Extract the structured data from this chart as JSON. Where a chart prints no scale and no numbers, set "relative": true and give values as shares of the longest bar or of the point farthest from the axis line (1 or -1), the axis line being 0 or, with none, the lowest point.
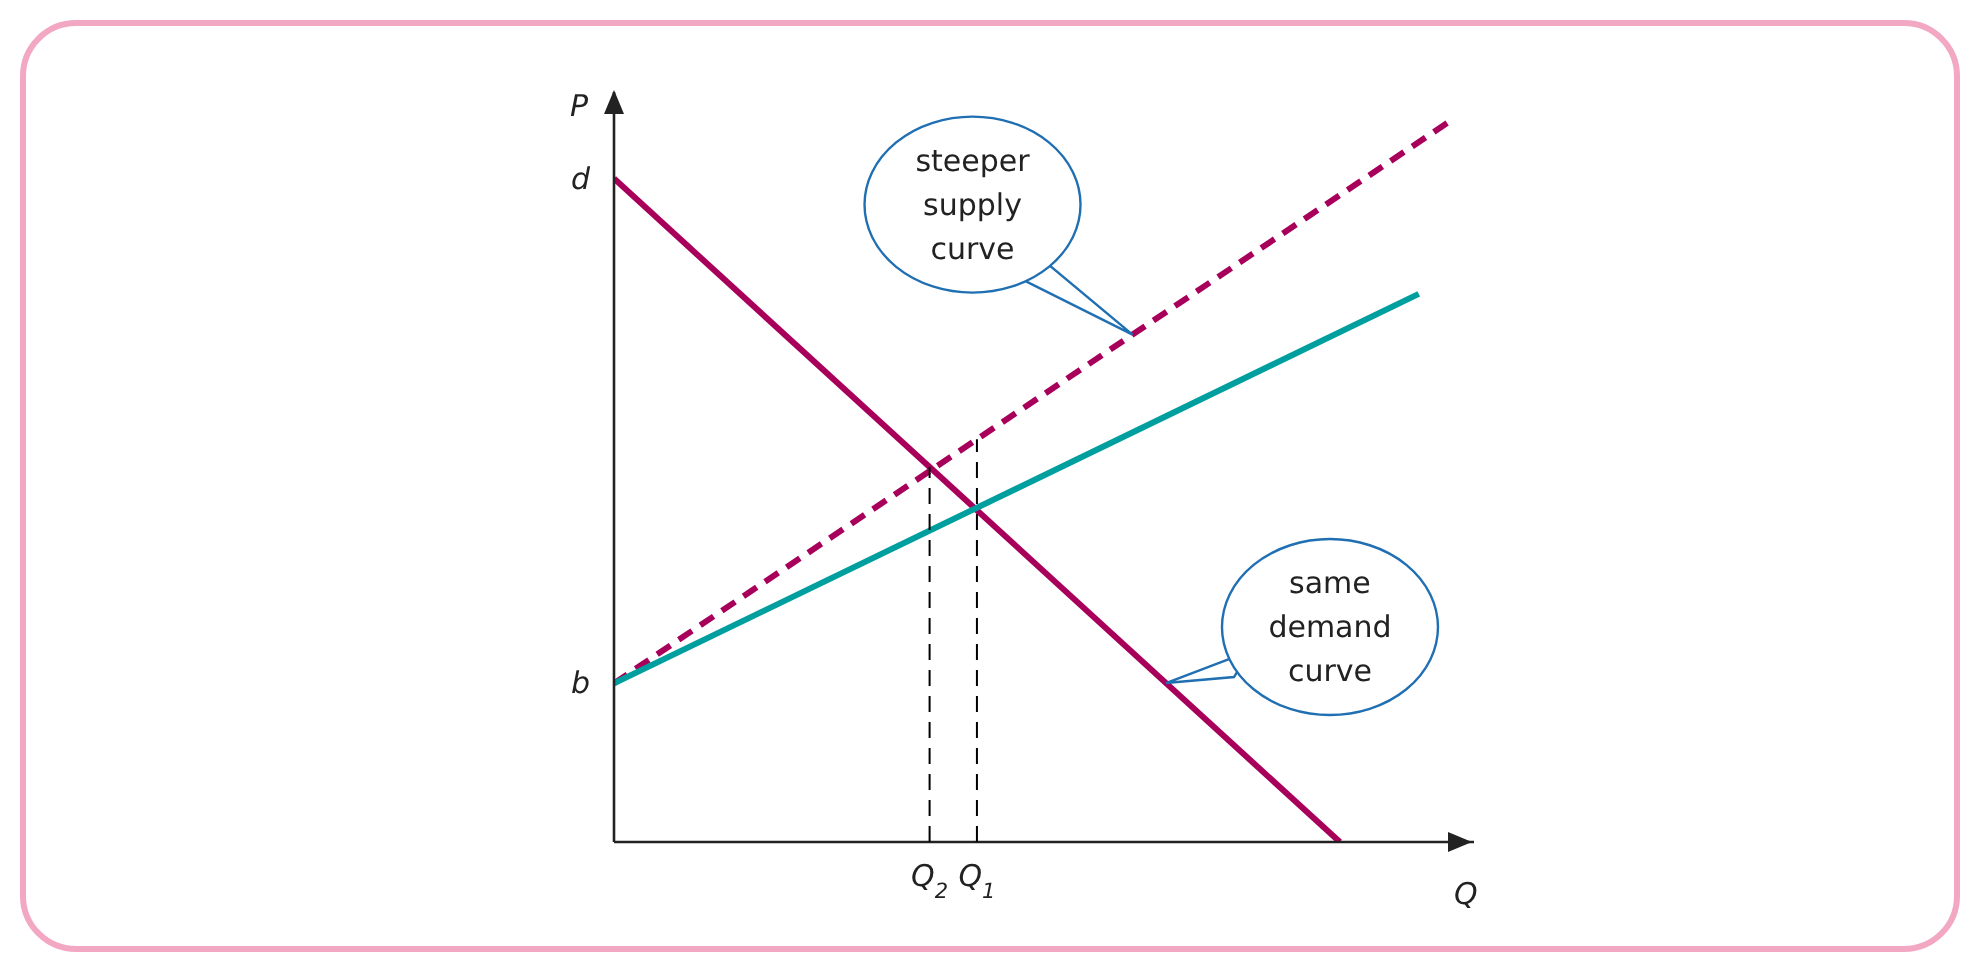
{
  "chart_data": {
    "type": "line",
    "relative": true,
    "xlabel": "Q",
    "ylabel": "P",
    "categories": [
      null,
      null,
      null,
      null,
      null,
      null,
      null,
      null,
      null,
      null,
      null,
      null,
      null,
      null,
      null,
      null,
      null,
      null,
      null,
      null,
      "Q$_{2}$",
      null,
      null,
      "Q$_{1}$",
      null,
      null,
      null,
      null,
      null,
      null,
      null,
      null,
      null,
      null,
      null,
      null,
      null,
      null,
      null,
      null,
      null,
      null,
      null,
      null,
      null,
      null,
      null,
      null,
      null,
      null,
      null,
      null,
      null,
      null
    ],
    "series": [
      {
        "color": "#a8005a",
        "line_style": "solid",
        "values": [
          0.92,
          null,
          null,
          null,
          null,
          null,
          null,
          null,
          null,
          null,
          null,
          null,
          null,
          null,
          null,
          null,
          null,
          null,
          null,
          null,
          null,
          null,
          null,
          null,
          null,
          null,
          null,
          null,
          null,
          null,
          null,
          null,
          null,
          null,
          null,
          null,
          null,
          null,
          null,
          null,
          null,
          null,
          null,
          null,
          null,
          null,
          0,
          null,
          null,
          null,
          null,
          null,
          null,
          null
        ]
      },
      {
        "color": "#a8005a",
        "line_style": "dashed",
        "values": [
          0.22,
          null,
          null,
          null,
          null,
          null,
          null,
          null,
          null,
          null,
          null,
          null,
          null,
          null,
          null,
          null,
          null,
          null,
          null,
          null,
          null,
          null,
          null,
          null,
          null,
          null,
          null,
          null,
          null,
          null,
          null,
          null,
          null,
          null,
          null,
          null,
          null,
          null,
          null,
          null,
          null,
          null,
          null,
          null,
          null,
          null,
          null,
          null,
          null,
          null,
          null,
          null,
          null,
          1
        ]
      },
      {
        "color": "#009f9f",
        "line_style": "solid",
        "values": [
          0.22,
          null,
          null,
          null,
          null,
          null,
          null,
          null,
          null,
          null,
          null,
          null,
          null,
          null,
          null,
          null,
          null,
          null,
          null,
          null,
          null,
          null,
          null,
          null,
          null,
          null,
          null,
          null,
          null,
          null,
          null,
          null,
          null,
          null,
          null,
          null,
          null,
          null,
          null,
          null,
          null,
          null,
          null,
          null,
          null,
          null,
          null,
          null,
          null,
          null,
          null,
          0.76,
          null,
          null
        ]
      }
    ],
    "ref_lines": [
      {
        "axis": "x",
        "value": "Q$_{2}$",
        "color": "#000000",
        "line_style": "dashed"
      },
      {
        "axis": "x",
        "value": "Q$_{1}$",
        "color": "#000000",
        "line_style": "dashed"
      }
    ],
    "annotations": [
      "steeper supply curve",
      "same demand curve",
      "b",
      "d"
    ],
    "marker": "none"
  }
}
